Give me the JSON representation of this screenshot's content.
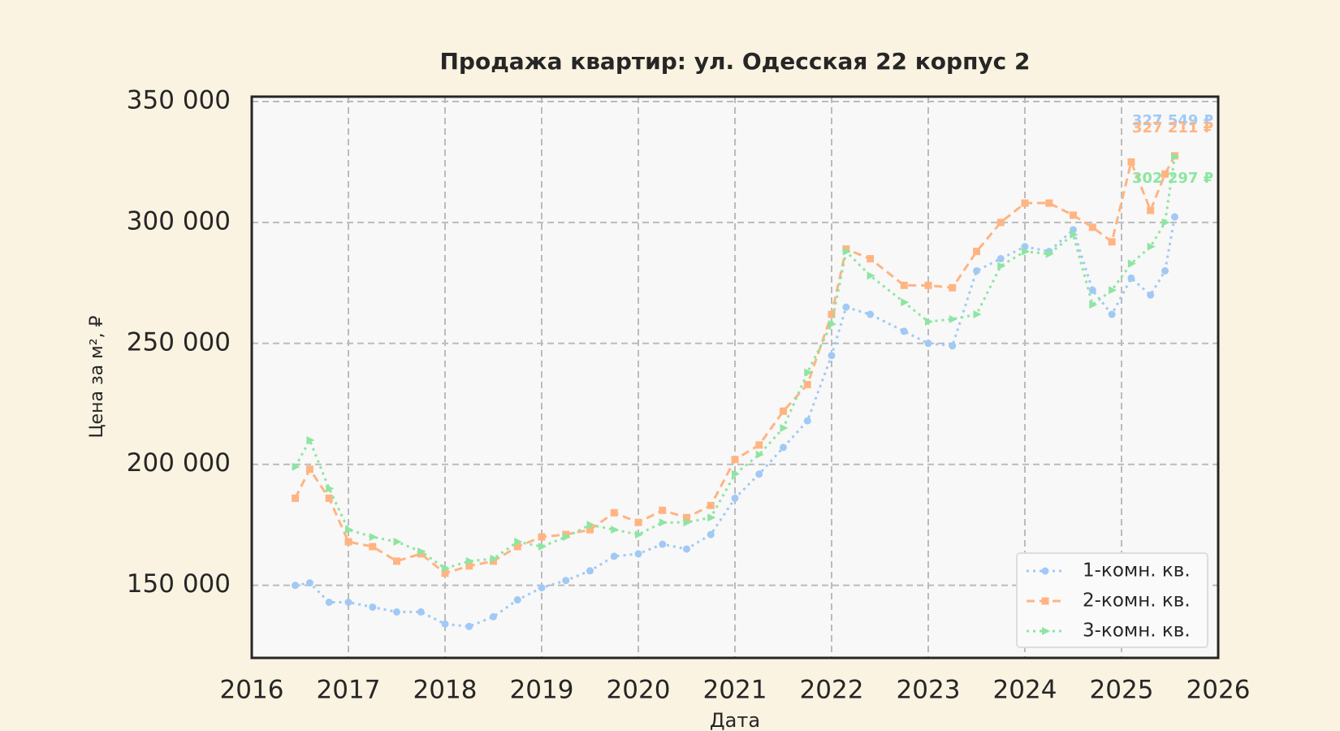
{
  "chart_data": {
    "type": "line",
    "title": "Продажа квартир: ул. Одесская 22 корпус 2",
    "x_label": "Дата",
    "y_label": "Цена за м², ₽",
    "x": [
      2016.45,
      2016.6,
      2016.8,
      2017.0,
      2017.25,
      2017.5,
      2017.75,
      2018.0,
      2018.25,
      2018.5,
      2018.75,
      2019.0,
      2019.25,
      2019.5,
      2019.75,
      2020.0,
      2020.25,
      2020.5,
      2020.75,
      2021.0,
      2021.25,
      2021.5,
      2021.75,
      2022.0,
      2022.15,
      2022.4,
      2022.75,
      2023.0,
      2023.25,
      2023.5,
      2023.75,
      2024.0,
      2024.25,
      2024.5,
      2024.7,
      2024.9,
      2025.1,
      2025.3,
      2025.45,
      2025.55
    ],
    "series": [
      {
        "name": "1-комн. кв.",
        "color": "#a1c9f4",
        "linestyle": "dotted",
        "marker": "circle",
        "values": [
          150000,
          151000,
          143000,
          143000,
          141000,
          139000,
          139000,
          134000,
          133000,
          137000,
          144000,
          149000,
          152000,
          156000,
          162000,
          163000,
          167000,
          165000,
          171000,
          186000,
          196000,
          207000,
          218000,
          245000,
          265000,
          262000,
          255000,
          250000,
          249000,
          280000,
          285000,
          290000,
          288000,
          297000,
          272000,
          262000,
          277000,
          270000,
          280000,
          302297
        ]
      },
      {
        "name": "2-комн. кв.",
        "color": "#ffb482",
        "linestyle": "dashed",
        "marker": "square",
        "values": [
          186000,
          198000,
          186000,
          168000,
          166000,
          160000,
          163000,
          155000,
          158000,
          160000,
          166000,
          170000,
          171000,
          173000,
          180000,
          176000,
          181000,
          178000,
          183000,
          202000,
          208000,
          222000,
          233000,
          262000,
          289000,
          285000,
          274000,
          274000,
          273000,
          288000,
          300000,
          308000,
          308000,
          303000,
          298000,
          292000,
          325000,
          305000,
          320000,
          327549
        ]
      },
      {
        "name": "3-комн. кв.",
        "color": "#8de5a1",
        "linestyle": "dotted",
        "marker": "triangle",
        "values": [
          199000,
          210000,
          190000,
          173000,
          170000,
          168000,
          164000,
          157000,
          160000,
          161000,
          168000,
          166000,
          170000,
          175000,
          173000,
          171000,
          176000,
          176000,
          178000,
          196000,
          204000,
          215000,
          238000,
          258000,
          288000,
          278000,
          267000,
          259000,
          260000,
          262000,
          282000,
          288000,
          287000,
          295000,
          266000,
          272000,
          283000,
          290000,
          300000,
          327211
        ]
      }
    ],
    "annotations": [
      "327 549 ₽",
      "327 211 ₽",
      "302 297 ₽"
    ],
    "xlim": [
      2016,
      2026
    ],
    "xticks": [
      2016,
      2017,
      2018,
      2019,
      2020,
      2021,
      2022,
      2023,
      2024,
      2025,
      2026
    ],
    "ylim": [
      120000,
      352000
    ],
    "yticks": [
      {
        "value": 150000,
        "label": "150 000"
      },
      {
        "value": 200000,
        "label": "200 000"
      },
      {
        "value": 250000,
        "label": "250 000"
      },
      {
        "value": 300000,
        "label": "300 000"
      },
      {
        "value": 350000,
        "label": "350 000"
      }
    ],
    "grid": true,
    "legend": "lower right"
  }
}
